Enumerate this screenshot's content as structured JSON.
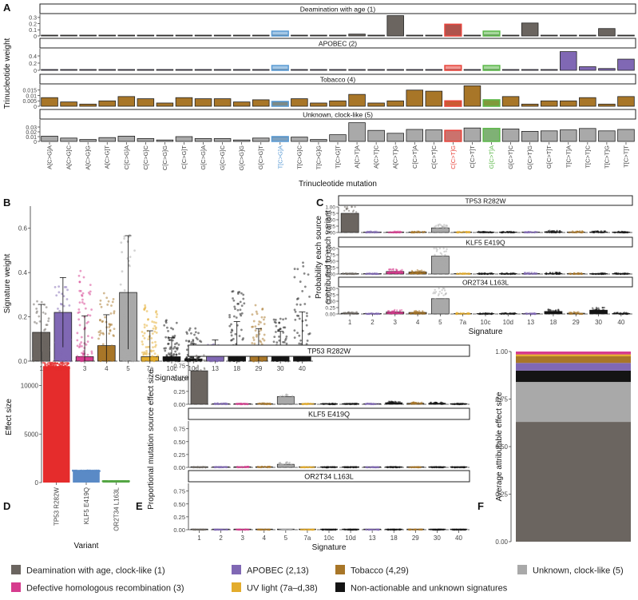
{
  "colors": {
    "deamination": "#6b6560",
    "apobec": "#8068b4",
    "tobacco": "#a87628",
    "unknown": "#a9a9a9",
    "hr": "#d63c8e",
    "uv": "#e3ac2c",
    "nonact": "#141414",
    "tp53": "#e52c2c",
    "klf5": "#5a8ac6",
    "or2t34": "#55a645",
    "hl_red": "#e8453c",
    "hl_blue": "#5a9bd4",
    "hl_green": "#5cb84a"
  },
  "chart_data": [
    {
      "panel": "A",
      "type": "bar",
      "ylabel": "Trinucleotide weight",
      "xlabel": "Trinucleotide mutation",
      "categories": [
        "A[C>G]A",
        "A[C>G]C",
        "A[C>G]G",
        "A[C>G]T",
        "C[C>G]A",
        "C[C>G]C",
        "C[C>G]G",
        "C[C>G]T",
        "G[C>G]A",
        "G[C>G]C",
        "G[C>G]G",
        "G[C>G]T",
        "T[C>G]A",
        "T[C>G]C",
        "T[C>G]G",
        "T[C>G]T",
        "A[C>T]A",
        "A[C>T]C",
        "A[C>T]G",
        "C[C>T]A",
        "C[C>T]C",
        "C[C>T]G",
        "C[C>T]T",
        "G[C>T]A",
        "G[C>T]C",
        "G[C>T]G",
        "G[C>T]T",
        "T[C>T]A",
        "T[C>T]C",
        "T[C>T]G",
        "T[C>T]T"
      ],
      "highlight": {
        "T[C>G]A": "hl_blue",
        "C[C>T]G": "hl_red",
        "G[C>T]A": "hl_green"
      },
      "facets": [
        {
          "label": "Deamination with age (1)",
          "color": "deamination",
          "ylim": [
            0,
            0.35
          ],
          "ticks": [
            0,
            0.1,
            0.2,
            0.3
          ],
          "values": [
            0.002,
            0.002,
            0.001,
            0.002,
            0.003,
            0.002,
            0.001,
            0.002,
            0.002,
            0.002,
            0.001,
            0.003,
            0.003,
            0.002,
            0.001,
            0.003,
            0.03,
            0.006,
            0.33,
            0.004,
            0.005,
            0.19,
            0.006,
            0.015,
            0.003,
            0.21,
            0.004,
            0.005,
            0.003,
            0.12,
            0.004
          ]
        },
        {
          "label": "APOBEC (2)",
          "color": "apobec",
          "ylim": [
            0,
            0.6
          ],
          "ticks": [
            0,
            0.2,
            0.4
          ],
          "values": [
            0.0,
            0.0,
            0.0,
            0.0,
            0.0,
            0.0,
            0.0,
            0.0,
            0.0,
            0.0,
            0.0,
            0.0,
            0.0,
            0.0,
            0.0,
            0.0,
            0.0,
            0.0,
            0.0,
            0.0,
            0.0,
            0.0,
            0.0,
            0.0,
            0.0,
            0.0,
            0.0,
            0.52,
            0.1,
            0.05,
            0.31
          ]
        },
        {
          "label": "Tobacco (4)",
          "color": "tobacco",
          "ylim": [
            0,
            0.02
          ],
          "ticks": [
            0,
            0.005,
            0.01,
            0.015
          ],
          "values": [
            0.008,
            0.004,
            0.002,
            0.005,
            0.009,
            0.007,
            0.003,
            0.008,
            0.007,
            0.007,
            0.004,
            0.006,
            0.004,
            0.007,
            0.003,
            0.005,
            0.011,
            0.003,
            0.005,
            0.015,
            0.014,
            0.005,
            0.019,
            0.006,
            0.009,
            0.002,
            0.005,
            0.005,
            0.008,
            0.002,
            0.009
          ]
        },
        {
          "label": "Unknown, clock-like (5)",
          "color": "unknown",
          "ylim": [
            0,
            0.045
          ],
          "ticks": [
            0,
            0.01,
            0.02,
            0.03
          ],
          "values": [
            0.011,
            0.007,
            0.004,
            0.008,
            0.011,
            0.006,
            0.003,
            0.01,
            0.006,
            0.006,
            0.003,
            0.007,
            0.009,
            0.009,
            0.004,
            0.014,
            0.039,
            0.023,
            0.017,
            0.025,
            0.024,
            0.023,
            0.028,
            0.027,
            0.026,
            0.021,
            0.022,
            0.024,
            0.027,
            0.022,
            0.025
          ]
        }
      ]
    },
    {
      "panel": "B",
      "type": "bar",
      "xlabel": "Signature",
      "ylabel": "Signature weight",
      "ylim": [
        0,
        0.7
      ],
      "ticks": [
        0.0,
        0.2,
        0.4,
        0.6
      ],
      "categories": [
        "1",
        "2",
        "3",
        "4",
        "5",
        "7a",
        "10c",
        "10d",
        "13",
        "18",
        "29",
        "30",
        "40"
      ],
      "values": [
        0.13,
        0.22,
        0.02,
        0.07,
        0.31,
        0.02,
        0.02,
        0.01,
        0.06,
        0.03,
        0.03,
        0.04,
        0.02
      ],
      "point_max": [
        0.28,
        0.35,
        0.41,
        0.31,
        0.57,
        0.26,
        0.19,
        0.15,
        0.08,
        0.33,
        0.26,
        0.21,
        0.45
      ],
      "colors": [
        "deamination",
        "apobec",
        "hr",
        "tobacco",
        "unknown",
        "uv",
        "nonact",
        "nonact",
        "apobec",
        "nonact",
        "tobacco",
        "nonact",
        "nonact"
      ]
    },
    {
      "panel": "C",
      "type": "bar",
      "xlabel": "Signature",
      "ylabel": "Probability each source contributed to each variant",
      "categories": [
        "1",
        "2",
        "3",
        "4",
        "5",
        "7a",
        "10c",
        "10d",
        "13",
        "18",
        "29",
        "30",
        "40"
      ],
      "ticks": [
        0.0,
        0.25,
        0.5,
        0.75,
        1.0
      ],
      "facets": [
        {
          "label": "TP53 R282W",
          "values": [
            0.75,
            0.01,
            0.01,
            0.01,
            0.18,
            0.005,
            0.005,
            0.005,
            0.005,
            0.03,
            0.02,
            0.02,
            0.005
          ]
        },
        {
          "label": "KLF5 E419Q",
          "values": [
            0.005,
            0.005,
            0.1,
            0.08,
            0.7,
            0.005,
            0.005,
            0.005,
            0.02,
            0.02,
            0.005,
            0.005,
            0.005
          ]
        },
        {
          "label": "OR2T34 L163L",
          "values": [
            0.03,
            0.005,
            0.08,
            0.06,
            0.6,
            0.01,
            0.005,
            0.005,
            0.005,
            0.1,
            0.03,
            0.15,
            0.02
          ]
        }
      ]
    },
    {
      "panel": "D",
      "type": "bar",
      "xlabel": "Variant",
      "ylabel": "Effect size",
      "ylim": [
        0,
        13500
      ],
      "ticks": [
        0,
        5000,
        10000
      ],
      "categories": [
        "TP53 R282W",
        "KLF5 E419Q",
        "OR2T34 L163L"
      ],
      "values": [
        12000,
        1200,
        140
      ],
      "colors": [
        "tp53",
        "klf5",
        "or2t34"
      ]
    },
    {
      "panel": "E",
      "type": "bar",
      "xlabel": "Signature",
      "ylabel": "Proportional mutation source effect size",
      "categories": [
        "1",
        "2",
        "3",
        "4",
        "5",
        "7a",
        "10c",
        "10d",
        "13",
        "18",
        "29",
        "30",
        "40"
      ],
      "ticks": [
        0.0,
        0.25,
        0.5,
        0.75
      ],
      "ylim": [
        0,
        0.9
      ],
      "facets": [
        {
          "label": "TP53 R282W",
          "values": [
            0.65,
            0.01,
            0.005,
            0.01,
            0.15,
            0.005,
            0.005,
            0.005,
            0.005,
            0.03,
            0.02,
            0.02,
            0.005
          ]
        },
        {
          "label": "KLF5 E419Q",
          "values": [
            0.003,
            0.003,
            0.007,
            0.006,
            0.06,
            0.002,
            0.002,
            0.002,
            0.003,
            0.003,
            0.002,
            0.002,
            0.002
          ]
        },
        {
          "label": "OR2T34 L163L",
          "values": [
            0.0,
            0.0,
            0.0,
            0.0,
            0.0,
            0.0,
            0.0,
            0.0,
            0.0,
            0.0,
            0.0,
            0.0,
            0.0
          ]
        }
      ]
    },
    {
      "panel": "F",
      "type": "bar",
      "ylabel": "Average attributable effect size",
      "ylim": [
        0,
        1
      ],
      "ticks": [
        0.0,
        0.25,
        0.5,
        0.75,
        1.0
      ],
      "stack": [
        {
          "color": "deamination",
          "value": 0.63
        },
        {
          "color": "unknown",
          "value": 0.21
        },
        {
          "color": "nonact",
          "value": 0.06
        },
        {
          "color": "apobec",
          "value": 0.04
        },
        {
          "color": "tobacco",
          "value": 0.035
        },
        {
          "color": "uv",
          "value": 0.01
        },
        {
          "color": "hr",
          "value": 0.015
        }
      ]
    }
  ],
  "panel_letters": [
    "A",
    "B",
    "C",
    "D",
    "E",
    "F"
  ],
  "legend": [
    {
      "label": "Deamination with age, clock-like (1)",
      "color": "deamination"
    },
    {
      "label": "APOBEC (2,13)",
      "color": "apobec"
    },
    {
      "label": "Tobacco (4,29)",
      "color": "tobacco"
    },
    {
      "label": "Unknown, clock-like (5)",
      "color": "unknown"
    },
    {
      "label": "Defective homologous recombination (3)",
      "color": "hr"
    },
    {
      "label": "UV light (7a–d,38)",
      "color": "uv"
    },
    {
      "label": "Non-actionable and unknown signatures",
      "color": "nonact"
    }
  ]
}
